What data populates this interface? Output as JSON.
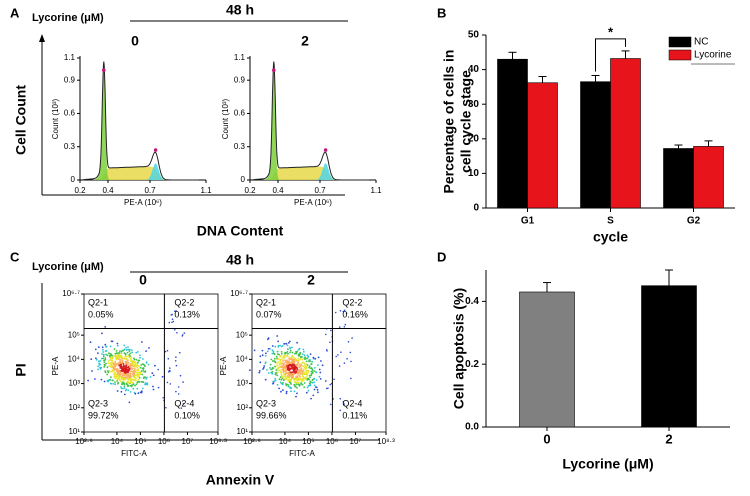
{
  "chart_data": [
    {
      "type": "flow-histogram",
      "panel": "A",
      "condition_label": "Lycorine (μM)",
      "time": "48 h",
      "y_label": "Cell  Count",
      "x_label": "DNA Content",
      "plots": [
        {
          "title": "0",
          "y_axis_label": "Count  (10³)",
          "x_axis_label": "PE-A  (10⁶)",
          "xlim": [
            0.2,
            1.1
          ],
          "xticks": [
            0.2,
            0.4,
            0.7,
            1.1
          ],
          "ylim": [
            0,
            1.1
          ],
          "yticks": [
            0,
            0.3,
            0.6,
            0.9,
            1.1
          ]
        },
        {
          "title": "2",
          "y_axis_label": "Count  (10³)",
          "x_axis_label": "PE-A  (10⁶)",
          "xlim": [
            0.2,
            1.1
          ],
          "xticks": [
            0.2,
            0.4,
            0.7,
            1.1
          ],
          "ylim": [
            0,
            1.1
          ],
          "yticks": [
            0,
            0.3,
            0.6,
            0.9,
            1.1
          ]
        }
      ]
    },
    {
      "type": "bar",
      "panel": "B",
      "y_label": [
        "Percentage of cells in",
        "cell cycle stage"
      ],
      "x_label": "cycle",
      "categories": [
        "G1",
        "S",
        "G2"
      ],
      "series": [
        {
          "name": "NC",
          "color": "#000000",
          "values": [
            43,
            36.5,
            17.2
          ],
          "errors": [
            2,
            1.8,
            1
          ]
        },
        {
          "name": "Lycorine",
          "color": "#e8141c",
          "values": [
            36.2,
            43.2,
            17.8
          ],
          "errors": [
            1.8,
            2.2,
            1.6
          ]
        }
      ],
      "ylim": [
        0,
        50
      ],
      "yticks": [
        0,
        10,
        20,
        30,
        40,
        50
      ],
      "legend": "upper right",
      "significance": {
        "category": "S",
        "label": "*"
      }
    },
    {
      "type": "flow-scatter",
      "panel": "C",
      "condition_label": "Lycorine (μM)",
      "time": "48 h",
      "y_label": "PI",
      "x_label": "Annexin V",
      "plots": [
        {
          "title": "0",
          "x_axis_label": "FITC-A",
          "y_axis_label": "PE-A",
          "xlim": [
            2.6,
            8.3
          ],
          "xticks": [
            {
              "value": 2.6,
              "label": "10²·⁶"
            },
            {
              "value": 4,
              "label": "10⁴"
            },
            {
              "value": 5,
              "label": "10⁵"
            },
            {
              "value": 6,
              "label": "10⁶"
            },
            {
              "value": 7,
              "label": "10⁷"
            },
            {
              "value": 8.3,
              "label": "10⁸·³"
            }
          ],
          "ylim": [
            1,
            6.7
          ],
          "yticks": [
            {
              "value": 1,
              "label": "10¹"
            },
            {
              "value": 2,
              "label": "10²"
            },
            {
              "value": 3,
              "label": "10³"
            },
            {
              "value": 4,
              "label": "10⁴"
            },
            {
              "value": 5,
              "label": "10⁵"
            },
            {
              "value": 6.7,
              "label": "10⁶·⁷"
            }
          ],
          "quadrants": [
            "Q2-1",
            "Q2-2",
            "Q2-3",
            "Q2-4"
          ],
          "values": [
            0.05,
            0.13,
            99.72,
            0.1
          ],
          "value_labels": [
            "0.05%",
            "0.13%",
            "99.72%",
            "0.10%"
          ]
        },
        {
          "title": "2",
          "x_axis_label": "FITC-A",
          "y_axis_label": "PE-A",
          "xlim": [
            2.6,
            8.3
          ],
          "xticks": [
            {
              "value": 2.6,
              "label": "10²·⁶"
            },
            {
              "value": 4,
              "label": "10⁴"
            },
            {
              "value": 5,
              "label": "10⁵"
            },
            {
              "value": 6,
              "label": "10⁶"
            },
            {
              "value": 7,
              "label": "10⁷"
            },
            {
              "value": 8.3,
              "label": "10⁸·³"
            }
          ],
          "ylim": [
            1,
            6.7
          ],
          "yticks": [
            {
              "value": 1,
              "label": "10¹"
            },
            {
              "value": 2,
              "label": "10²"
            },
            {
              "value": 3,
              "label": "10³"
            },
            {
              "value": 4,
              "label": "10⁴"
            },
            {
              "value": 5,
              "label": "10⁵"
            },
            {
              "value": 6.7,
              "label": "10⁶·⁷"
            }
          ],
          "quadrants": [
            "Q2-1",
            "Q2-2",
            "Q2-3",
            "Q2-4"
          ],
          "values": [
            0.07,
            0.16,
            99.66,
            0.11
          ],
          "value_labels": [
            "0.07%",
            "0.16%",
            "99.66%",
            "0.11%"
          ]
        }
      ]
    },
    {
      "type": "bar",
      "panel": "D",
      "y_label": "Cell apoptosis (%)",
      "x_label": "Lycorine (μM)",
      "categories": [
        "0",
        "2"
      ],
      "values": [
        0.43,
        0.45
      ],
      "errors": [
        0.03,
        0.05
      ],
      "colors": [
        "#808080",
        "#000000"
      ],
      "ylim": [
        0,
        0.5
      ],
      "yticks": [
        {
          "value": 0,
          "label": "0.0"
        },
        0.2,
        0.4
      ]
    }
  ]
}
